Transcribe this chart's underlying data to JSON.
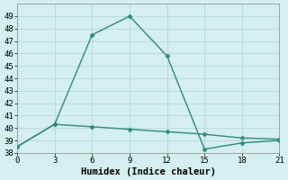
{
  "line1_x": [
    0,
    3,
    6,
    9,
    12,
    15,
    18,
    21
  ],
  "line1_y": [
    38.5,
    40.3,
    47.5,
    49.0,
    45.8,
    38.3,
    38.8,
    39.0
  ],
  "line2_x": [
    0,
    3,
    6,
    9,
    12,
    15,
    18,
    21
  ],
  "line2_y": [
    38.5,
    40.3,
    40.1,
    39.9,
    39.7,
    39.5,
    39.2,
    39.1
  ],
  "line_color": "#2e8b7a",
  "bg_color": "#d5eeee",
  "grid_color": "#b8d8d8",
  "xlabel": "Humidex (Indice chaleur)",
  "ylim": [
    38,
    50
  ],
  "xlim": [
    0,
    21
  ],
  "yticks": [
    38,
    39,
    40,
    41,
    42,
    43,
    44,
    45,
    46,
    47,
    48,
    49
  ],
  "xticks": [
    0,
    3,
    6,
    9,
    12,
    15,
    18,
    21
  ],
  "xlabel_fontsize": 7.5,
  "tick_fontsize": 6.5,
  "markersize": 2.5,
  "linewidth": 1.0
}
